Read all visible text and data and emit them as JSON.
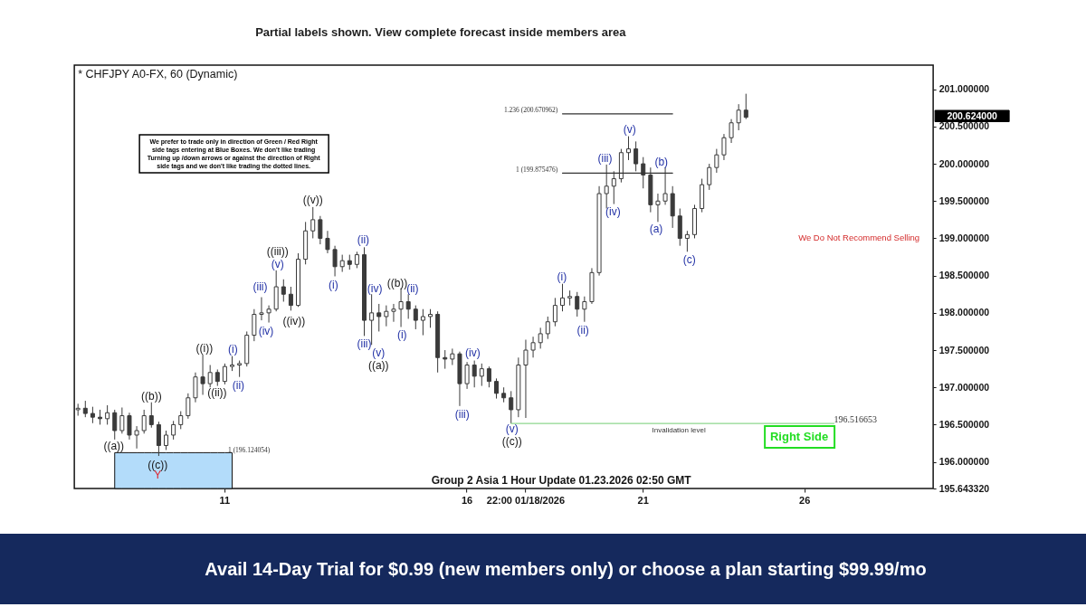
{
  "chart_data": {
    "type": "candlestick",
    "title": "* CHFJPY A0-FX, 60 (Dynamic)",
    "subtitle": "Group 2 Asia 1 Hour Update 01.23.2026 02:50 GMT",
    "color": "#3a3a3a",
    "categories": [
      null,
      null,
      null,
      null,
      null,
      null,
      null,
      null,
      null,
      null,
      null,
      null,
      null,
      null,
      null,
      null,
      null,
      null,
      null,
      null,
      "11",
      null,
      null,
      null,
      null,
      null,
      null,
      null,
      null,
      null,
      null,
      null,
      null,
      null,
      null,
      null,
      null,
      null,
      null,
      null,
      null,
      null,
      null,
      null,
      null,
      null,
      null,
      null,
      null,
      null,
      null,
      null,
      null,
      "16",
      null,
      null,
      null,
      null,
      null,
      null,
      null,
      "22:00 01/18/2026",
      null,
      null,
      null,
      null,
      null,
      null,
      null,
      null,
      null,
      null,
      null,
      null,
      null,
      null,
      null,
      "21",
      null,
      null,
      null,
      null,
      null,
      null,
      null,
      null,
      null,
      null,
      null,
      null,
      null,
      null,
      null,
      null,
      null,
      null,
      null,
      null,
      null,
      "26",
      null,
      null,
      null,
      null,
      null,
      null,
      null,
      null,
      null,
      null,
      null,
      null,
      null,
      null,
      null,
      null,
      null
    ],
    "ohlc": [
      [
        196.7,
        196.78,
        196.62,
        196.72
      ],
      [
        196.72,
        196.82,
        196.6,
        196.65
      ],
      [
        196.65,
        196.74,
        196.52,
        196.6
      ],
      [
        196.6,
        196.7,
        196.5,
        196.58
      ],
      [
        196.58,
        196.76,
        196.5,
        196.66
      ],
      [
        196.66,
        196.7,
        196.3,
        196.42
      ],
      [
        196.42,
        196.73,
        196.38,
        196.62
      ],
      [
        196.62,
        196.66,
        196.3,
        196.36
      ],
      [
        196.36,
        196.48,
        196.18,
        196.42
      ],
      [
        196.42,
        196.7,
        196.38,
        196.62
      ],
      [
        196.62,
        196.8,
        196.46,
        196.5
      ],
      [
        196.5,
        196.54,
        196.08,
        196.22
      ],
      [
        196.22,
        196.42,
        196.16,
        196.36
      ],
      [
        196.36,
        196.55,
        196.3,
        196.5
      ],
      [
        196.5,
        196.68,
        196.44,
        196.62
      ],
      [
        196.62,
        196.92,
        196.58,
        196.86
      ],
      [
        196.86,
        197.2,
        196.8,
        197.14
      ],
      [
        197.14,
        197.44,
        196.9,
        197.05
      ],
      [
        197.05,
        197.3,
        197.0,
        197.2
      ],
      [
        197.2,
        197.24,
        197.02,
        197.08
      ],
      [
        197.08,
        197.32,
        197.04,
        197.28
      ],
      [
        197.28,
        197.42,
        197.22,
        197.3
      ],
      [
        197.3,
        197.36,
        197.14,
        197.32
      ],
      [
        197.32,
        197.75,
        197.28,
        197.7
      ],
      [
        197.7,
        198.05,
        197.62,
        197.98
      ],
      [
        197.98,
        198.21,
        197.9,
        198.0
      ],
      [
        198.0,
        198.1,
        197.87,
        198.05
      ],
      [
        198.05,
        198.57,
        198.02,
        198.35
      ],
      [
        198.35,
        198.45,
        198.15,
        198.25
      ],
      [
        198.25,
        198.35,
        198.03,
        198.1
      ],
      [
        198.1,
        198.8,
        198.08,
        198.72
      ],
      [
        198.72,
        199.22,
        198.65,
        199.1
      ],
      [
        199.1,
        199.42,
        199.0,
        199.25
      ],
      [
        199.25,
        199.3,
        198.92,
        199.0
      ],
      [
        199.0,
        199.1,
        198.8,
        198.85
      ],
      [
        198.85,
        198.9,
        198.49,
        198.62
      ],
      [
        198.62,
        198.78,
        198.55,
        198.7
      ],
      [
        198.7,
        198.78,
        198.58,
        198.65
      ],
      [
        198.65,
        198.82,
        198.6,
        198.78
      ],
      [
        198.78,
        198.88,
        197.69,
        197.9
      ],
      [
        197.9,
        198.25,
        197.57,
        198.0
      ],
      [
        198.0,
        198.12,
        197.75,
        197.95
      ],
      [
        197.95,
        198.1,
        197.82,
        198.02
      ],
      [
        198.02,
        198.12,
        197.88,
        198.05
      ],
      [
        198.05,
        198.33,
        197.81,
        198.15
      ],
      [
        198.15,
        198.25,
        197.92,
        198.05
      ],
      [
        198.05,
        198.1,
        197.78,
        197.9
      ],
      [
        197.9,
        198.05,
        197.7,
        197.95
      ],
      [
        197.95,
        198.05,
        197.8,
        197.98
      ],
      [
        197.98,
        198.02,
        197.2,
        197.4
      ],
      [
        197.4,
        197.5,
        197.25,
        197.38
      ],
      [
        197.38,
        197.52,
        197.3,
        197.45
      ],
      [
        197.45,
        197.48,
        196.75,
        197.05
      ],
      [
        197.05,
        197.34,
        196.98,
        197.3
      ],
      [
        197.3,
        197.36,
        197.0,
        197.15
      ],
      [
        197.15,
        197.32,
        197.02,
        197.25
      ],
      [
        197.25,
        197.28,
        197.0,
        197.08
      ],
      [
        197.08,
        197.12,
        196.85,
        196.92
      ],
      [
        196.92,
        197.0,
        196.8,
        196.86
      ],
      [
        196.86,
        196.95,
        196.517,
        196.7
      ],
      [
        196.7,
        197.4,
        196.6,
        197.3
      ],
      [
        197.3,
        197.64,
        196.59,
        197.5
      ],
      [
        197.5,
        197.68,
        197.4,
        197.6
      ],
      [
        197.6,
        197.8,
        197.52,
        197.72
      ],
      [
        197.72,
        197.95,
        197.65,
        197.88
      ],
      [
        197.88,
        198.2,
        197.82,
        198.1
      ],
      [
        198.1,
        198.39,
        198.02,
        198.2
      ],
      [
        198.2,
        198.3,
        198.1,
        198.22
      ],
      [
        198.22,
        198.28,
        197.95,
        198.05
      ],
      [
        198.05,
        198.22,
        197.88,
        198.15
      ],
      [
        198.15,
        198.6,
        198.12,
        198.54
      ],
      [
        198.54,
        199.7,
        198.5,
        199.6
      ],
      [
        199.6,
        199.99,
        199.4,
        199.7
      ],
      [
        199.7,
        199.9,
        199.46,
        199.8
      ],
      [
        199.8,
        200.2,
        199.75,
        200.15
      ],
      [
        200.15,
        200.37,
        200.05,
        200.2
      ],
      [
        200.2,
        200.3,
        199.9,
        200.0
      ],
      [
        200.0,
        200.09,
        199.67,
        199.85
      ],
      [
        199.85,
        199.95,
        199.35,
        199.45
      ],
      [
        199.45,
        199.6,
        199.22,
        199.5
      ],
      [
        199.5,
        199.95,
        199.45,
        199.6
      ],
      [
        199.6,
        199.7,
        199.14,
        199.3
      ],
      [
        199.3,
        199.4,
        198.9,
        199.0
      ],
      [
        199.0,
        199.1,
        198.82,
        199.05
      ],
      [
        199.05,
        199.45,
        199.0,
        199.4
      ],
      [
        199.4,
        199.8,
        199.35,
        199.72
      ],
      [
        199.72,
        200.0,
        199.65,
        199.95
      ],
      [
        199.95,
        200.2,
        199.88,
        200.12
      ],
      [
        200.12,
        200.4,
        200.05,
        200.35
      ],
      [
        200.35,
        200.6,
        200.28,
        200.55
      ],
      [
        200.55,
        200.8,
        200.45,
        200.72
      ],
      [
        200.72,
        200.94,
        200.6,
        200.624
      ],
      null,
      null,
      null,
      null,
      null,
      null,
      null,
      null,
      null,
      null,
      null,
      null,
      null,
      null,
      null,
      null,
      null,
      null,
      null,
      null,
      null,
      null,
      null,
      null,
      null
    ],
    "series": [
      {
        "type": "area",
        "color": "#b3dcfa",
        "values": [
          null,
          null,
          null,
          null,
          null,
          196.124054,
          196.124054,
          196.124054,
          196.124054,
          196.124054,
          196.124054,
          196.124054,
          196.124054,
          196.124054,
          196.124054,
          196.124054,
          196.124054,
          196.124054,
          196.124054,
          196.124054,
          196.124054,
          196.124054,
          null,
          null,
          null,
          null,
          null,
          null,
          null,
          null,
          null,
          null,
          null,
          null,
          null,
          null,
          null,
          null,
          null,
          null,
          null,
          null,
          null,
          null,
          null,
          null,
          null,
          null,
          null,
          null,
          null,
          null,
          null,
          null,
          null,
          null,
          null,
          null,
          null,
          null,
          null,
          null,
          null,
          null,
          null,
          null,
          null,
          null,
          null,
          null,
          null,
          null,
          null,
          null,
          null,
          null,
          null,
          null,
          null,
          null,
          null,
          null,
          null,
          null,
          null,
          null,
          null,
          null,
          null,
          null,
          null,
          null,
          null,
          null,
          null,
          null,
          null,
          null,
          null,
          null,
          null,
          null,
          null,
          null,
          null,
          null,
          null,
          null,
          null,
          null,
          null,
          null,
          null,
          null,
          null,
          null,
          null
        ]
      },
      {
        "type": "line",
        "color": "#333333",
        "values": [
          null,
          null,
          null,
          null,
          null,
          null,
          null,
          null,
          null,
          null,
          null,
          null,
          null,
          null,
          null,
          null,
          null,
          null,
          null,
          null,
          null,
          null,
          null,
          null,
          null,
          null,
          null,
          null,
          null,
          null,
          null,
          null,
          null,
          null,
          null,
          null,
          null,
          null,
          null,
          null,
          null,
          null,
          null,
          null,
          null,
          null,
          null,
          null,
          null,
          null,
          null,
          null,
          null,
          null,
          null,
          null,
          null,
          null,
          null,
          null,
          null,
          null,
          null,
          null,
          null,
          null,
          200.670962,
          200.670962,
          200.670962,
          200.670962,
          200.670962,
          200.670962,
          200.670962,
          200.670962,
          200.670962,
          200.670962,
          200.670962,
          200.670962,
          200.670962,
          200.670962,
          200.670962,
          200.670962,
          null,
          null,
          null,
          null,
          null,
          null,
          null,
          null,
          null,
          null,
          null,
          null,
          null,
          null,
          null,
          null,
          null,
          null,
          null,
          null,
          null,
          null,
          null,
          null,
          null,
          null,
          null,
          null,
          null,
          null,
          null,
          null,
          null,
          null,
          null
        ]
      },
      {
        "type": "line",
        "color": "#333333",
        "values": [
          null,
          null,
          null,
          null,
          null,
          null,
          null,
          null,
          null,
          null,
          null,
          null,
          null,
          null,
          null,
          null,
          null,
          null,
          null,
          null,
          null,
          null,
          null,
          null,
          null,
          null,
          null,
          null,
          null,
          null,
          null,
          null,
          null,
          null,
          null,
          null,
          null,
          null,
          null,
          null,
          null,
          null,
          null,
          null,
          null,
          null,
          null,
          null,
          null,
          null,
          null,
          null,
          null,
          null,
          null,
          null,
          null,
          null,
          null,
          null,
          null,
          null,
          null,
          null,
          null,
          null,
          199.875476,
          199.875476,
          199.875476,
          199.875476,
          199.875476,
          199.875476,
          199.875476,
          199.875476,
          199.875476,
          199.875476,
          199.875476,
          199.875476,
          199.875476,
          199.875476,
          199.875476,
          199.875476,
          null,
          null,
          null,
          null,
          null,
          null,
          null,
          null,
          null,
          null,
          null,
          null,
          null,
          null,
          null,
          null,
          null,
          null,
          null,
          null,
          null,
          null,
          null,
          null,
          null,
          null,
          null,
          null,
          null,
          null,
          null,
          null,
          null,
          null,
          null
        ]
      },
      {
        "type": "line",
        "color": "#8fd88f",
        "values": [
          null,
          null,
          null,
          null,
          null,
          null,
          null,
          null,
          null,
          null,
          null,
          null,
          null,
          null,
          null,
          null,
          null,
          null,
          null,
          null,
          null,
          null,
          null,
          null,
          null,
          null,
          null,
          null,
          null,
          null,
          null,
          null,
          null,
          null,
          null,
          null,
          null,
          null,
          null,
          null,
          null,
          null,
          null,
          null,
          null,
          null,
          null,
          null,
          null,
          null,
          null,
          null,
          null,
          null,
          null,
          null,
          null,
          null,
          null,
          196.516653,
          196.516653,
          196.516653,
          196.516653,
          196.516653,
          196.516653,
          196.516653,
          196.516653,
          196.516653,
          196.516653,
          196.516653,
          196.516653,
          196.516653,
          196.516653,
          196.516653,
          196.516653,
          196.516653,
          196.516653,
          196.516653,
          196.516653,
          196.516653,
          196.516653,
          196.516653,
          196.516653,
          196.516653,
          196.516653,
          196.516653,
          196.516653,
          196.516653,
          196.516653,
          196.516653,
          196.516653,
          196.516653,
          196.516653,
          196.516653,
          196.516653,
          196.516653,
          196.516653,
          196.516653,
          196.516653,
          196.516653,
          196.516653,
          196.516653,
          196.516653,
          196.516653,
          null,
          null,
          null,
          null,
          null,
          null,
          null,
          null,
          null,
          null,
          null,
          null,
          null
        ]
      }
    ],
    "ylim": [
      195.64332,
      201.324
    ],
    "yticks": [
      {
        "value": 195.64332,
        "label": "195.643320"
      },
      {
        "value": 196,
        "label": "196.000000"
      },
      {
        "value": 196.5,
        "label": "196.500000"
      },
      {
        "value": 197,
        "label": "197.000000"
      },
      {
        "value": 197.5,
        "label": "197.500000"
      },
      {
        "value": 198,
        "label": "198.000000"
      },
      {
        "value": 198.5,
        "label": "198.500000"
      },
      {
        "value": 199,
        "label": "199.000000"
      },
      {
        "value": 199.5,
        "label": "199.500000"
      },
      {
        "value": 200,
        "label": "200.000000"
      },
      {
        "value": 200.5,
        "label": "200.500000"
      },
      {
        "value": 201,
        "label": "201.000000"
      }
    ],
    "annotations": [
      "Partial labels shown. View complete forecast inside members area",
      "We prefer to trade only in direction of Green / Red Right\nside tags entering at Blue Boxes. We don't like trading\nTurning up /down arrows or against the direction of Right\nside tags and we don't like trading the dotted lines.",
      "We Do Not Recommend Selling",
      "Right Side",
      "Avail 14-Day Trial for $0.99 (new members only) or choose a plan starting $99.99/mo",
      "200.624000",
      "1.236 (200.670962)",
      "1 (199.875476)",
      "1 (196.124054)",
      "196.516653",
      "Invalidation level",
      "((a))",
      "((b))",
      "((c))",
      "Y",
      "((i))",
      "((ii))",
      "(i)",
      "(ii)",
      "(iii)",
      "(iv)",
      "((iii))",
      "(v)",
      "((iv))",
      "((v))",
      "(i)",
      "(ii)",
      "(iii)",
      "(iv)",
      "(v)",
      "((a))",
      "((b))",
      "(i)",
      "(ii)",
      "(iii)",
      "(iv)",
      "(v)",
      "((c))",
      "(i)",
      "(ii)",
      "(iii)",
      "(iv)",
      "(v)",
      "(a)",
      "(b)",
      "(c)"
    ]
  }
}
